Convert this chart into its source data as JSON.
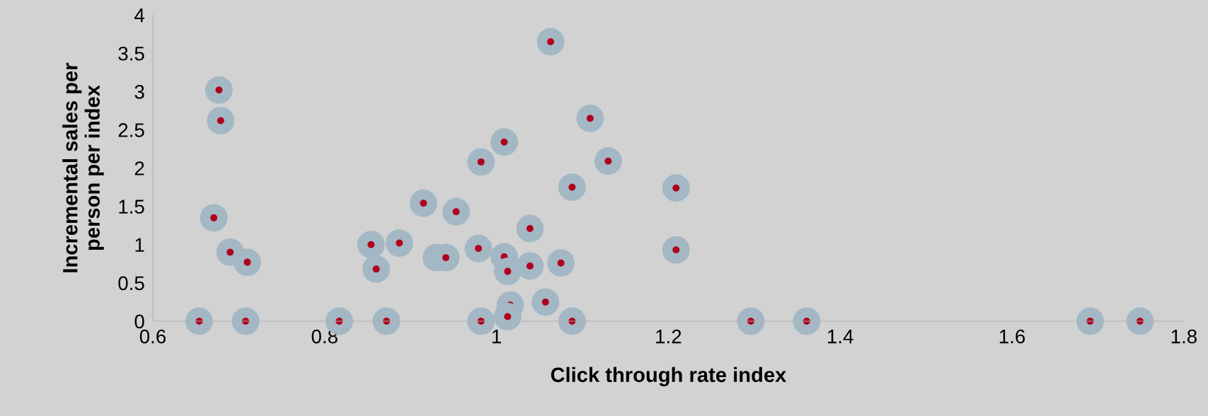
{
  "chart_data": {
    "type": "scatter",
    "xlabel": "Click through rate index",
    "ylabel": "Incremental sales per\nperson per index",
    "x": [
      0.654,
      0.677,
      0.679,
      0.671,
      0.69,
      0.71,
      0.708,
      0.817,
      0.854,
      0.86,
      0.872,
      0.887,
      0.915,
      0.93,
      0.941,
      0.953,
      0.979,
      0.982,
      0.982,
      1.009,
      1.009,
      1.013,
      1.016,
      1.013,
      1.039,
      1.039,
      1.057,
      1.063,
      1.075,
      1.088,
      1.088,
      1.109,
      1.13,
      1.209,
      1.209,
      1.296,
      1.361,
      1.691,
      1.749
    ],
    "series": [
      {
        "color": "#a3b8c4",
        "marker": "circle",
        "values": [
          0,
          3.02,
          2.62,
          1.35,
          0.9,
          0.77,
          0,
          0,
          1.0,
          0.68,
          0,
          1.02,
          1.54,
          0.83,
          0.83,
          1.43,
          0.95,
          2.08,
          0,
          2.34,
          0.84,
          0.65,
          0.21,
          0.06,
          1.21,
          0.72,
          0.25,
          3.65,
          0.76,
          1.75,
          0,
          2.65,
          2.09,
          1.74,
          0.93,
          0,
          0,
          0,
          0
        ]
      }
    ],
    "xlim": [
      0.6,
      1.8
    ],
    "xticks": [
      0.6,
      0.8,
      1,
      1.2,
      1.4,
      1.6,
      1.8
    ],
    "ylim": [
      0,
      4
    ],
    "yticks": [
      0,
      0.5,
      1,
      1.5,
      2,
      2.5,
      3,
      3.5,
      4
    ],
    "grid": false,
    "legend": false
  }
}
